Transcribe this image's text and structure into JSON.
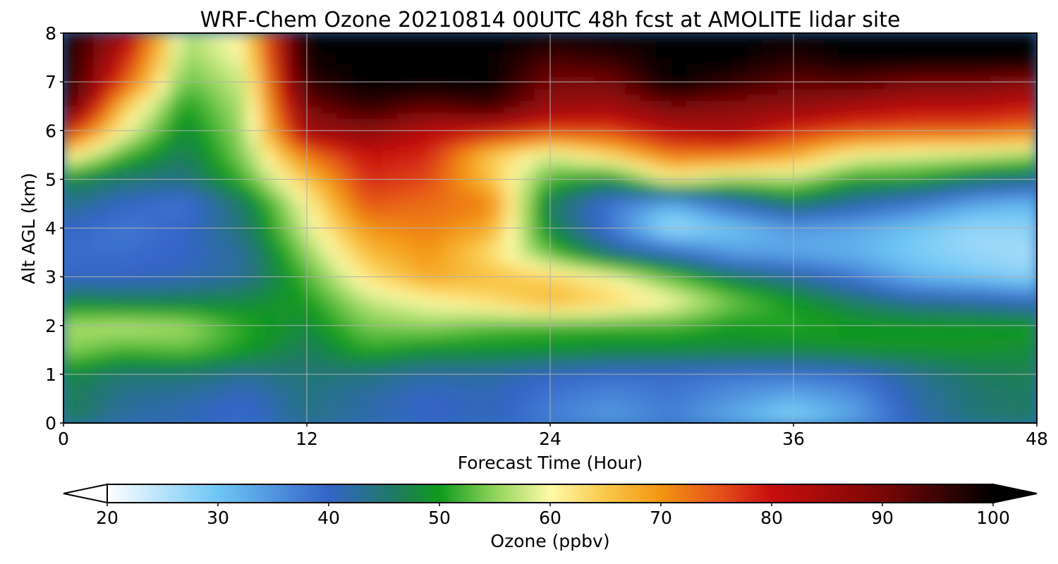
{
  "chart_data": {
    "type": "heatmap",
    "title": "WRF-Chem Ozone  20210814 00UTC 48h fcst at AMOLITE lidar site",
    "xlabel": "Forecast Time (Hour)",
    "ylabel": "Alt AGL (km)",
    "xlim": [
      0,
      48
    ],
    "ylim": [
      0,
      8
    ],
    "x_ticks": [
      0,
      12,
      24,
      36,
      48
    ],
    "y_ticks": [
      0,
      1,
      2,
      3,
      4,
      5,
      6,
      7,
      8
    ],
    "grid": true,
    "colorbar": {
      "label": "Ozone  (ppbv)",
      "orientation": "horizontal",
      "placement": "bottom",
      "range": [
        20,
        100
      ],
      "ticks": [
        20,
        30,
        40,
        50,
        60,
        70,
        80,
        90,
        100
      ],
      "extend": "both",
      "color_stops": [
        {
          "value": 20,
          "color": "#ffffff"
        },
        {
          "value": 30,
          "color": "#6ec6f5"
        },
        {
          "value": 40,
          "color": "#3464c8"
        },
        {
          "value": 46,
          "color": "#1f7a62"
        },
        {
          "value": 50,
          "color": "#0f9a1c"
        },
        {
          "value": 55,
          "color": "#8fd45a"
        },
        {
          "value": 60,
          "color": "#fffaa8"
        },
        {
          "value": 65,
          "color": "#f9c84a"
        },
        {
          "value": 70,
          "color": "#f39512"
        },
        {
          "value": 75,
          "color": "#e5551a"
        },
        {
          "value": 80,
          "color": "#c80e0e"
        },
        {
          "value": 90,
          "color": "#7a0707"
        },
        {
          "value": 100,
          "color": "#000000"
        }
      ]
    },
    "grid_x_hours": [
      0,
      3,
      6,
      9,
      12,
      15,
      18,
      21,
      24,
      27,
      30,
      33,
      36,
      39,
      42,
      45,
      48
    ],
    "grid_y_km": [
      0,
      0.5,
      1,
      1.5,
      2,
      2.5,
      3,
      3.5,
      4,
      4.5,
      5,
      5.5,
      6,
      6.5,
      7,
      7.5,
      8
    ],
    "ozone_ppbv_by_altitude": [
      [
        47,
        42,
        41,
        39,
        44,
        42,
        40,
        41,
        37,
        34,
        37,
        32,
        27,
        33,
        41,
        45,
        46
      ],
      [
        47,
        43,
        42,
        40,
        44,
        42,
        40,
        41,
        38,
        36,
        38,
        35,
        32,
        35,
        42,
        45,
        46
      ],
      [
        48,
        45,
        45,
        43,
        45,
        44,
        42,
        42,
        40,
        39,
        39,
        38,
        38,
        39,
        43,
        46,
        47
      ],
      [
        55,
        52,
        53,
        50,
        46,
        51,
        49,
        49,
        49,
        48,
        48,
        48,
        48,
        49,
        49,
        49,
        48
      ],
      [
        56,
        57,
        56,
        51,
        48,
        54,
        55,
        53,
        52,
        52,
        52,
        50,
        51,
        50,
        50,
        50,
        50
      ],
      [
        48,
        47,
        47,
        48,
        50,
        57,
        60,
        63,
        67,
        64,
        60,
        54,
        50,
        46,
        43,
        42,
        40
      ],
      [
        40,
        40,
        41,
        43,
        52,
        62,
        68,
        66,
        64,
        60,
        53,
        47,
        43,
        38,
        32,
        30,
        28
      ],
      [
        39,
        39,
        40,
        43,
        55,
        66,
        70,
        63,
        53,
        44,
        40,
        34,
        33,
        32,
        29,
        27,
        26
      ],
      [
        40,
        38,
        40,
        45,
        58,
        70,
        72,
        68,
        48,
        38,
        26,
        30,
        34,
        33,
        30,
        27,
        28
      ],
      [
        44,
        40,
        38,
        46,
        60,
        75,
        73,
        72,
        46,
        38,
        32,
        40,
        46,
        42,
        38,
        33,
        31
      ],
      [
        48,
        45,
        44,
        52,
        65,
        78,
        76,
        66,
        52,
        48,
        60,
        55,
        56,
        50,
        50,
        46,
        44
      ],
      [
        63,
        52,
        46,
        55,
        72,
        80,
        78,
        65,
        58,
        64,
        72,
        72,
        68,
        60,
        58,
        57,
        55
      ],
      [
        80,
        60,
        48,
        56,
        85,
        88,
        82,
        80,
        76,
        76,
        82,
        84,
        78,
        75,
        74,
        74,
        72
      ],
      [
        96,
        65,
        50,
        57,
        90,
        96,
        92,
        95,
        86,
        85,
        90,
        88,
        87,
        84,
        82,
        82,
        80
      ],
      [
        100,
        75,
        53,
        58,
        96,
        100,
        100,
        100,
        90,
        90,
        100,
        96,
        92,
        93,
        90,
        90,
        88
      ],
      [
        100,
        80,
        55,
        60,
        99,
        100,
        100,
        100,
        94,
        96,
        100,
        100,
        97,
        100,
        100,
        100,
        100
      ],
      [
        100,
        85,
        56,
        62,
        100,
        100,
        100,
        100,
        100,
        100,
        100,
        100,
        100,
        100,
        100,
        100,
        100
      ]
    ]
  }
}
